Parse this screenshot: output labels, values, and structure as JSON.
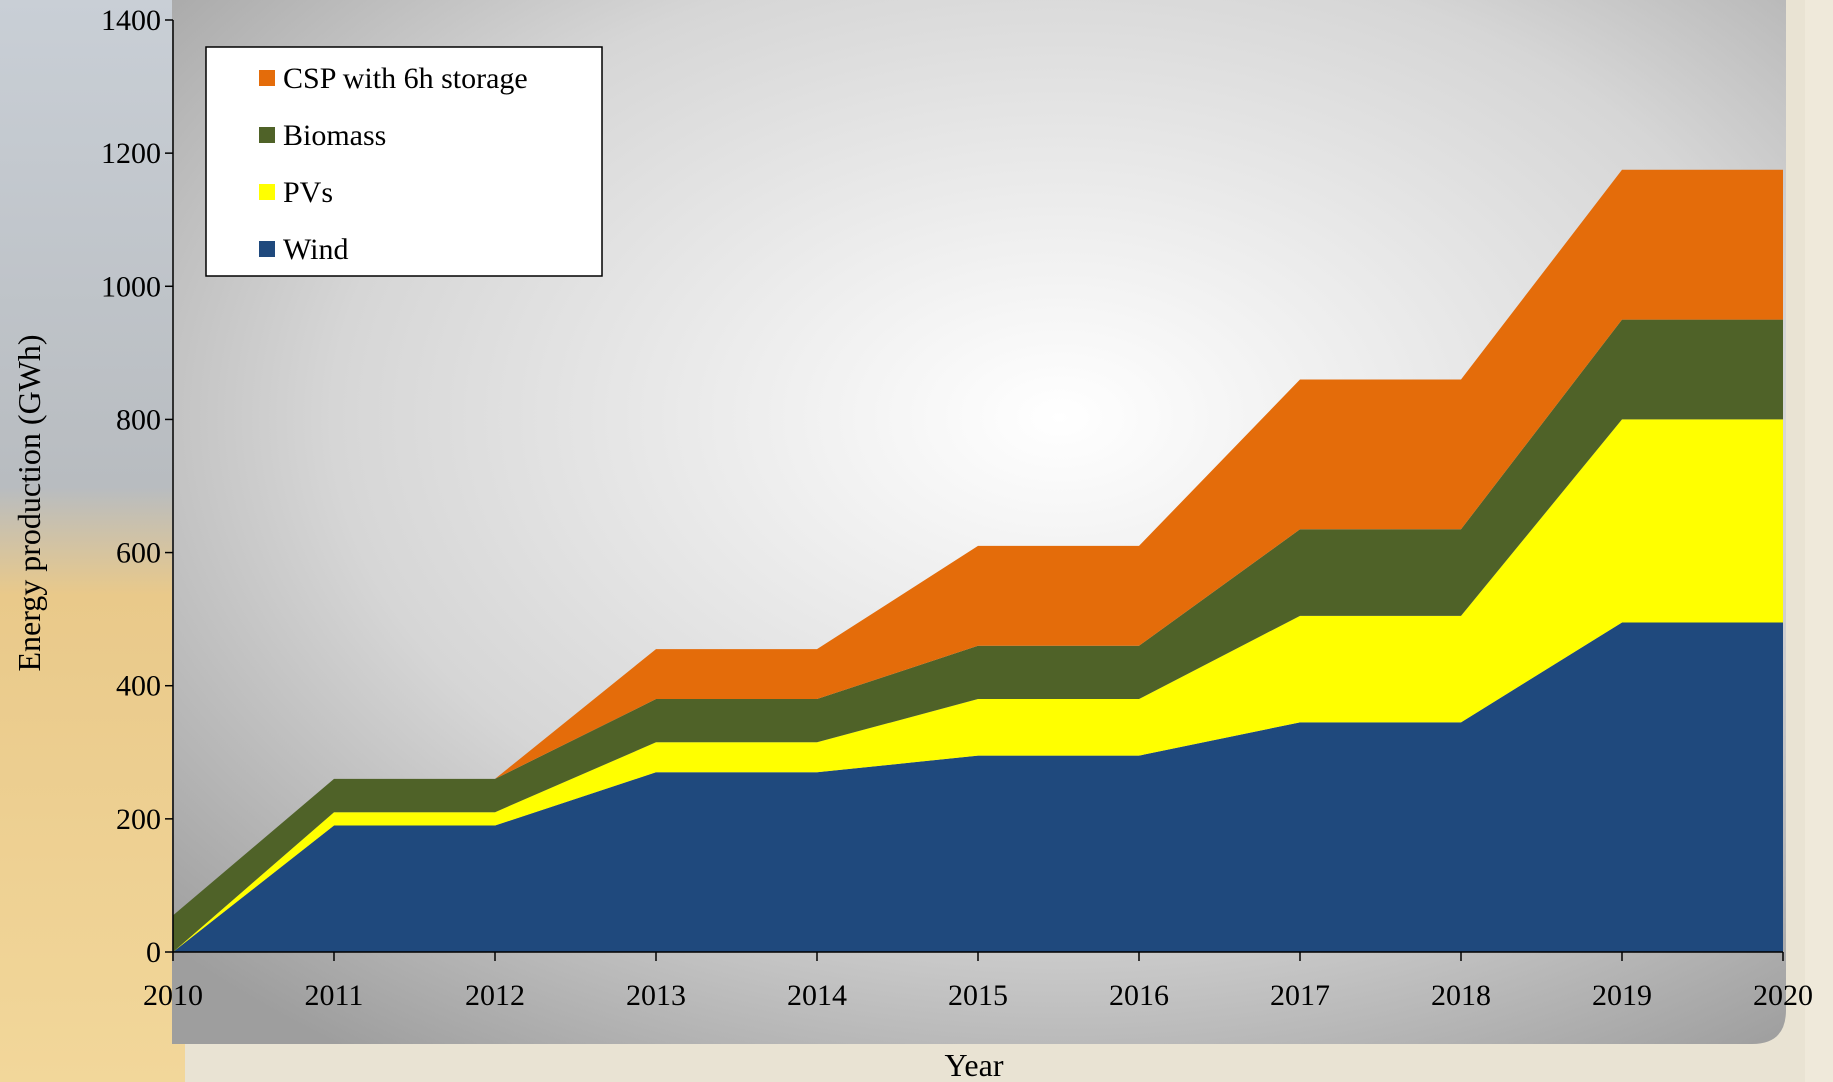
{
  "chart_data": {
    "type": "stacked_area",
    "x": [
      2010,
      2011,
      2012,
      2013,
      2014,
      2015,
      2016,
      2017,
      2018,
      2019,
      2020
    ],
    "series": [
      {
        "name": "Wind",
        "color": "#1f497d",
        "values": [
          0,
          190,
          190,
          270,
          270,
          295,
          295,
          345,
          345,
          495,
          495
        ]
      },
      {
        "name": "PVs",
        "color": "#ffff00",
        "values": [
          0,
          20,
          20,
          45,
          45,
          85,
          85,
          160,
          160,
          305,
          305
        ]
      },
      {
        "name": "Biomass",
        "color": "#4f6228",
        "values": [
          55,
          50,
          50,
          65,
          65,
          80,
          80,
          130,
          130,
          150,
          150
        ]
      },
      {
        "name": "CSP with 6h storage",
        "color": "#e46c0a",
        "values": [
          0,
          0,
          0,
          75,
          75,
          150,
          150,
          225,
          225,
          225,
          225
        ]
      }
    ],
    "xlabel": "Year",
    "ylabel": "Energy production (GWh)",
    "xlim": [
      2010,
      2020
    ],
    "xticks": [
      2010,
      2011,
      2012,
      2013,
      2014,
      2015,
      2016,
      2017,
      2018,
      2019,
      2020
    ],
    "ylim": [
      0,
      1400
    ],
    "yticks": [
      0,
      200,
      400,
      600,
      800,
      1000,
      1200,
      1400
    ],
    "legend": "upper left"
  }
}
